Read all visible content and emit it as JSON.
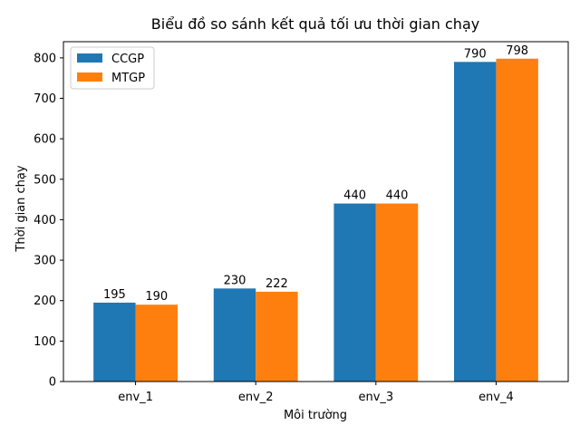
{
  "chart_data": {
    "type": "bar",
    "title": "Biểu đồ so sánh kết quả tối ưu thời gian chạy",
    "xlabel": "Môi trường",
    "ylabel": "Thời gian chạy",
    "categories": [
      "env_1",
      "env_2",
      "env_3",
      "env_4"
    ],
    "series": [
      {
        "name": "CCGP",
        "values": [
          195,
          230,
          440,
          790
        ],
        "color": "#1f77b4"
      },
      {
        "name": "MTGP",
        "values": [
          190,
          222,
          440,
          798
        ],
        "color": "#ff7f0e"
      }
    ],
    "ylim": [
      0,
      840
    ],
    "yticks": [
      0,
      100,
      200,
      300,
      400,
      500,
      600,
      700,
      800
    ],
    "legend": "top-left",
    "grid": false,
    "data_labels": true
  }
}
